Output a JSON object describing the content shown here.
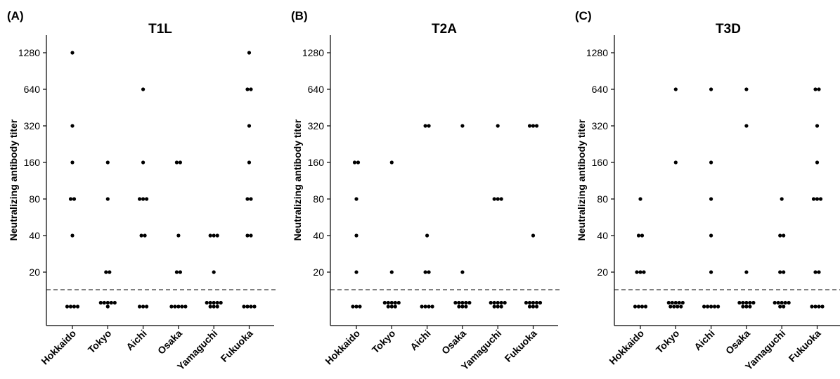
{
  "chart_data": [
    {
      "type": "scatter",
      "panel_label": "(A)",
      "title": "T1L",
      "ylabel": "Neutralizing antibody titer",
      "y_scale": "log2",
      "y_ticks": [
        "20",
        "40",
        "80",
        "160",
        "320",
        "640",
        "1280"
      ],
      "threshold_line": "dashed, just below 20",
      "categories": [
        "Hokkaido",
        "Tokyo",
        "Aichi",
        "Osaka",
        "Yamaguchi",
        "Fukuoka"
      ],
      "points": [
        {
          "category": "Hokkaido",
          "titers": [
            1280,
            320,
            160,
            80,
            80,
            40,
            "<20",
            "<20",
            "<20",
            "<20"
          ]
        },
        {
          "category": "Tokyo",
          "titers": [
            160,
            80,
            20,
            20,
            "<20",
            "<20",
            "<20",
            "<20",
            "<20",
            "<20"
          ]
        },
        {
          "category": "Aichi",
          "titers": [
            640,
            160,
            80,
            80,
            80,
            40,
            40,
            "<20",
            "<20",
            "<20"
          ]
        },
        {
          "category": "Osaka",
          "titers": [
            160,
            160,
            40,
            20,
            20,
            "<20",
            "<20",
            "<20",
            "<20",
            "<20"
          ]
        },
        {
          "category": "Yamaguchi",
          "titers": [
            40,
            40,
            40,
            20,
            "<20",
            "<20",
            "<20",
            "<20",
            "<20",
            "<20",
            "<20",
            "<20"
          ]
        },
        {
          "category": "Fukuoka",
          "titers": [
            1280,
            640,
            640,
            320,
            160,
            80,
            80,
            40,
            40,
            "<20",
            "<20",
            "<20",
            "<20"
          ]
        }
      ]
    },
    {
      "type": "scatter",
      "panel_label": "(B)",
      "title": "T2A",
      "ylabel": "Neutralizing antibody titer",
      "y_scale": "log2",
      "y_ticks": [
        "20",
        "40",
        "80",
        "160",
        "320",
        "640",
        "1280"
      ],
      "threshold_line": "dashed, just below 20",
      "categories": [
        "Hokkaido",
        "Tokyo",
        "Aichi",
        "Osaka",
        "Yamaguchi",
        "Fukuoka"
      ],
      "points": [
        {
          "category": "Hokkaido",
          "titers": [
            160,
            160,
            80,
            40,
            20,
            "<20",
            "<20",
            "<20"
          ]
        },
        {
          "category": "Tokyo",
          "titers": [
            160,
            20,
            "<20",
            "<20",
            "<20",
            "<20",
            "<20",
            "<20",
            "<20",
            "<20"
          ]
        },
        {
          "category": "Aichi",
          "titers": [
            320,
            320,
            40,
            20,
            20,
            "<20",
            "<20",
            "<20",
            "<20"
          ]
        },
        {
          "category": "Osaka",
          "titers": [
            320,
            20,
            "<20",
            "<20",
            "<20",
            "<20",
            "<20",
            "<20",
            "<20",
            "<20"
          ]
        },
        {
          "category": "Yamaguchi",
          "titers": [
            320,
            80,
            80,
            80,
            "<20",
            "<20",
            "<20",
            "<20",
            "<20",
            "<20",
            "<20",
            "<20"
          ]
        },
        {
          "category": "Fukuoka",
          "titers": [
            320,
            320,
            320,
            40,
            "<20",
            "<20",
            "<20",
            "<20",
            "<20",
            "<20",
            "<20",
            "<20"
          ]
        }
      ]
    },
    {
      "type": "scatter",
      "panel_label": "(C)",
      "title": "T3D",
      "ylabel": "Neutralizing antibody titer",
      "y_scale": "log2",
      "y_ticks": [
        "20",
        "40",
        "80",
        "160",
        "320",
        "640",
        "1280"
      ],
      "threshold_line": "dashed, just below 20",
      "categories": [
        "Hokkaido",
        "Tokyo",
        "Aichi",
        "Osaka",
        "Yamaguchi",
        "Fukuoka"
      ],
      "points": [
        {
          "category": "Hokkaido",
          "titers": [
            80,
            40,
            40,
            20,
            20,
            20,
            "<20",
            "<20",
            "<20",
            "<20"
          ]
        },
        {
          "category": "Tokyo",
          "titers": [
            640,
            160,
            "<20",
            "<20",
            "<20",
            "<20",
            "<20",
            "<20",
            "<20",
            "<20",
            "<20"
          ]
        },
        {
          "category": "Aichi",
          "titers": [
            640,
            160,
            80,
            40,
            20,
            "<20",
            "<20",
            "<20",
            "<20",
            "<20"
          ]
        },
        {
          "category": "Osaka",
          "titers": [
            640,
            320,
            20,
            "<20",
            "<20",
            "<20",
            "<20",
            "<20",
            "<20",
            "<20",
            "<20"
          ]
        },
        {
          "category": "Yamaguchi",
          "titers": [
            80,
            40,
            40,
            20,
            20,
            "<20",
            "<20",
            "<20",
            "<20",
            "<20",
            "<20",
            "<20"
          ]
        },
        {
          "category": "Fukuoka",
          "titers": [
            640,
            640,
            320,
            160,
            80,
            80,
            80,
            20,
            20,
            "<20",
            "<20",
            "<20",
            "<20"
          ]
        }
      ]
    }
  ]
}
